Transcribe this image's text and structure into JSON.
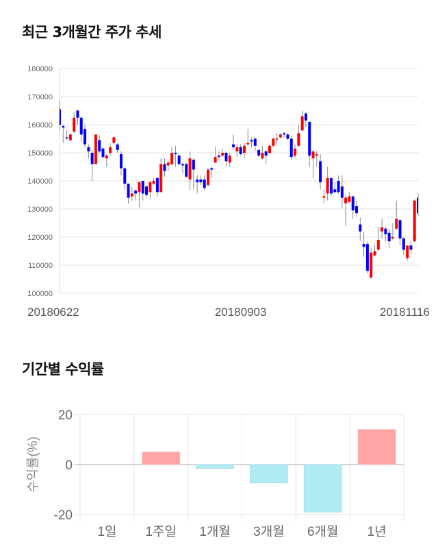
{
  "chart_data": [
    {
      "type": "candlestick",
      "title": "최근 3개월간 주가 추세",
      "ylim": [
        100000,
        180000
      ],
      "yticks": [
        "180000",
        "170000",
        "160000",
        "150000",
        "140000",
        "130000",
        "120000",
        "110000",
        "100000"
      ],
      "xtick_labels": [
        "20180622",
        "20180903",
        "20181116"
      ],
      "xtick_index": [
        0,
        50,
        99
      ],
      "up_color": "#ff0000",
      "down_color": "#0000ff",
      "grid": true,
      "ohlc": [
        [
          165500,
          160000,
          168500,
          158000
        ],
        [
          159500,
          159000,
          160000,
          153500
        ],
        [
          155500,
          155400,
          158000,
          154500
        ],
        [
          154500,
          156500,
          157000,
          154000
        ],
        [
          157500,
          162500,
          164500,
          157000
        ],
        [
          165000,
          162500,
          165500,
          160000
        ],
        [
          162500,
          156500,
          163000,
          154000
        ],
        [
          158500,
          153000,
          160000,
          152000
        ],
        [
          152000,
          150500,
          153000,
          148000
        ],
        [
          150000,
          146000,
          151000,
          140000
        ],
        [
          146000,
          156500,
          156500,
          146000
        ],
        [
          154500,
          150500,
          156000,
          150000
        ],
        [
          151500,
          148500,
          152000,
          148000
        ],
        [
          148000,
          149000,
          149500,
          145000
        ],
        [
          150000,
          152000,
          153500,
          149000
        ],
        [
          153500,
          155500,
          156000,
          153000
        ],
        [
          153000,
          151000,
          153500,
          150000
        ],
        [
          149500,
          144500,
          150500,
          142000
        ],
        [
          144500,
          139000,
          145000,
          137000
        ],
        [
          139000,
          134000,
          139000,
          132000
        ],
        [
          134500,
          135500,
          138000,
          133000
        ],
        [
          136500,
          135500,
          137000,
          133000
        ],
        [
          136000,
          139500,
          140000,
          130500
        ],
        [
          140000,
          135500,
          140000,
          133000
        ],
        [
          138000,
          135000,
          138500,
          134000
        ],
        [
          136000,
          139500,
          140000,
          133500
        ],
        [
          139000,
          140000,
          141000,
          138500
        ],
        [
          141000,
          136000,
          141500,
          134500
        ],
        [
          136000,
          146000,
          148000,
          136000
        ],
        [
          146000,
          143500,
          148000,
          141500
        ],
        [
          145500,
          146500,
          147000,
          143500
        ],
        [
          146000,
          150000,
          152000,
          145500
        ],
        [
          150000,
          149500,
          152500,
          145000
        ],
        [
          149000,
          146000,
          149500,
          145500
        ],
        [
          146000,
          145500,
          146500,
          142500
        ],
        [
          146000,
          141500,
          146500,
          141000
        ],
        [
          140500,
          148000,
          150500,
          136500
        ],
        [
          147500,
          144000,
          148000,
          137000
        ],
        [
          140500,
          139500,
          142000,
          135500
        ],
        [
          140500,
          139500,
          142000,
          138500
        ],
        [
          140500,
          137500,
          142000,
          136500
        ],
        [
          138500,
          144000,
          144500,
          138000
        ],
        [
          144500,
          144000,
          145000,
          141000
        ],
        [
          146500,
          148500,
          152000,
          146500
        ],
        [
          149000,
          148500,
          150500,
          147500
        ],
        [
          149000,
          150000,
          151500,
          148500
        ],
        [
          150000,
          147000,
          150500,
          145000
        ],
        [
          146500,
          149000,
          150000,
          145000
        ],
        [
          153000,
          152000,
          156500,
          151000
        ],
        [
          150500,
          152000,
          153000,
          148500
        ],
        [
          152000,
          149500,
          153000,
          149000
        ],
        [
          150000,
          152500,
          153500,
          148000
        ],
        [
          153000,
          153500,
          158500,
          152500
        ],
        [
          154500,
          154000,
          155500,
          152000
        ],
        [
          155000,
          152500,
          155500,
          150500
        ],
        [
          151000,
          149000,
          151500,
          148500
        ],
        [
          148000,
          150000,
          152500,
          147500
        ],
        [
          150500,
          149000,
          151000,
          146000
        ],
        [
          150000,
          152500,
          153000,
          149500
        ],
        [
          152500,
          155000,
          155500,
          152000
        ],
        [
          155000,
          155100,
          157000,
          153000
        ],
        [
          155500,
          156500,
          157000,
          155000
        ],
        [
          157000,
          156500,
          157500,
          155500
        ],
        [
          156500,
          155000,
          157000,
          154500
        ],
        [
          155000,
          148500,
          156000,
          147500
        ],
        [
          149000,
          151500,
          153000,
          148500
        ],
        [
          152500,
          157000,
          160000,
          152000
        ],
        [
          158000,
          163000,
          165000,
          157500
        ],
        [
          164000,
          161500,
          164500,
          159000
        ],
        [
          161000,
          149000,
          161000,
          145000
        ],
        [
          148000,
          150500,
          151000,
          141000
        ],
        [
          149000,
          149500,
          150500,
          145000
        ],
        [
          147000,
          139500,
          149500,
          137000
        ],
        [
          134000,
          134500,
          137000,
          132000
        ],
        [
          135500,
          141000,
          145000,
          133000
        ],
        [
          141000,
          135500,
          141000,
          134500
        ],
        [
          137000,
          136000,
          139500,
          135500
        ],
        [
          140000,
          136000,
          142000,
          135500
        ],
        [
          138000,
          134000,
          142000,
          130500
        ],
        [
          132000,
          134000,
          135000,
          124000
        ],
        [
          132500,
          134500,
          136000,
          132000
        ],
        [
          134500,
          129500,
          134500,
          126500
        ],
        [
          131000,
          128500,
          133000,
          127000
        ],
        [
          124500,
          122000,
          127000,
          118500
        ],
        [
          117500,
          116500,
          122000,
          113000
        ],
        [
          117500,
          108000,
          118500,
          107000
        ],
        [
          105500,
          114500,
          116000,
          105500
        ],
        [
          113500,
          115000,
          117000,
          113000
        ],
        [
          115500,
          119000,
          123500,
          115000
        ],
        [
          122000,
          123500,
          126500,
          119500
        ],
        [
          123000,
          121000,
          123500,
          118500
        ],
        [
          121500,
          118500,
          123000,
          116000
        ],
        [
          119500,
          120000,
          125000,
          119000
        ],
        [
          123000,
          126500,
          133000,
          122500
        ],
        [
          126000,
          119500,
          126500,
          117000
        ],
        [
          119500,
          115500,
          120000,
          113500
        ],
        [
          112500,
          117000,
          117000,
          111500
        ],
        [
          117000,
          115500,
          118500,
          114000
        ],
        [
          118500,
          133000,
          133500,
          118000
        ],
        [
          134000,
          128500,
          135500,
          127500
        ]
      ]
    },
    {
      "type": "bar",
      "title": "기간별 수익률",
      "ylabel": "수익률(%)",
      "ylim": [
        -20,
        20
      ],
      "yticks": [
        "20",
        "0",
        "-20"
      ],
      "categories": [
        "1일",
        "1주일",
        "1개월",
        "3개월",
        "6개월",
        "1년"
      ],
      "values": [
        0,
        5.0,
        -1.5,
        -7.3,
        -19.0,
        14.0
      ],
      "positive_color": "#ffa5a5",
      "negative_color": "#b0eaf2"
    }
  ]
}
